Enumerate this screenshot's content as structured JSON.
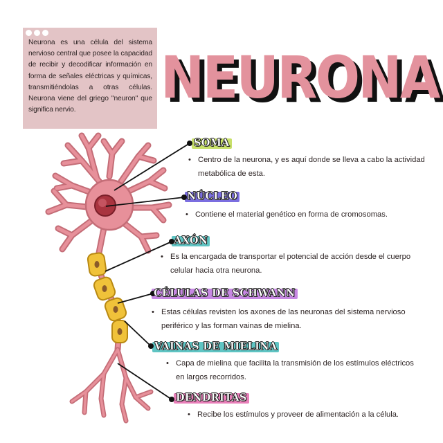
{
  "intro": {
    "text": "Neurona es una célula del sistema nervioso central que posee la capacidad de recibir y decodificar información en forma de señales eléctricas y químicas, transmitiéndolas a otras células. Neurona viene del griego \"neuron\" que significa nervio."
  },
  "title": "NEURONA",
  "parts": [
    {
      "label": "SOMA",
      "highlight": "#c8e06a",
      "desc_lines": [
        "Centro de la neurona, y es aquí donde se lleva a cabo la actividad",
        "metabólica de esta."
      ]
    },
    {
      "label": "NÚCLEO",
      "highlight": "#7b6ee0",
      "desc_lines": [
        "Contiene el material genético en forma de cromosomas."
      ]
    },
    {
      "label": "AXÓN",
      "highlight": "#5fc4c3",
      "desc_lines": [
        "Es la encargada de transportar el potencial de acción desde el cuerpo",
        "celular hacia otra neurona."
      ]
    },
    {
      "label": "CÉLULAS DE SCHWANN",
      "highlight": "#c788e3",
      "desc_lines": [
        "Estas células revisten los axones de las neuronas del sistema nervioso",
        "periférico y las forman vainas de mielina."
      ]
    },
    {
      "label": "VAINAS DE MIELINA",
      "highlight": "#5fc4c3",
      "desc_lines": [
        "Capa de mielina que facilita la transmisión de los estímulos eléctricos",
        "en largos recorridos."
      ]
    },
    {
      "label": "DENDRITAS",
      "highlight": "#e87fb9",
      "desc_lines": [
        "Recibe los estímulos y proveer de alimentación a la célula."
      ]
    }
  ],
  "colors": {
    "card": "#e3c4c6",
    "title_pink": "#e3929d",
    "neuron_body": "#e7909a",
    "neuron_outline": "#c46d77",
    "nucleus": "#a9343f",
    "myelin": "#f0c23a"
  }
}
